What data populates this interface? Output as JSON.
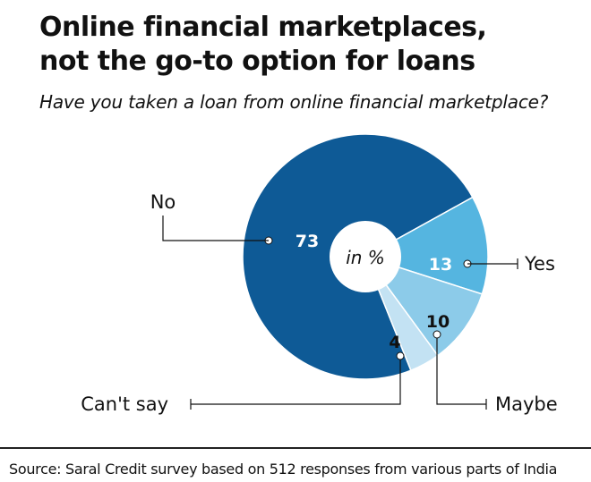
{
  "title_line1": "Online financial marketplaces,",
  "title_line2": "not the go-to option for loans",
  "subtitle": "Have you taken a loan from online financial marketplace?",
  "center_label": "in %",
  "source": "Source: Saral Credit survey based on 512 responses from various parts of India",
  "colors": {
    "no": "#0e5a96",
    "yes": "#55b5e0",
    "maybe": "#8ccbe9",
    "cant_say": "#c3e2f3",
    "text_dark": "#111111",
    "text_light": "#ffffff"
  },
  "chart_data": {
    "type": "pie",
    "title": "Online financial marketplaces, not the go-to option for loans",
    "subtitle": "Have you taken a loan from online financial marketplace?",
    "unit": "%",
    "slices": [
      {
        "label": "No",
        "value": 73
      },
      {
        "label": "Yes",
        "value": 13
      },
      {
        "label": "Maybe",
        "value": 10
      },
      {
        "label": "Can't say",
        "value": 4
      }
    ]
  }
}
